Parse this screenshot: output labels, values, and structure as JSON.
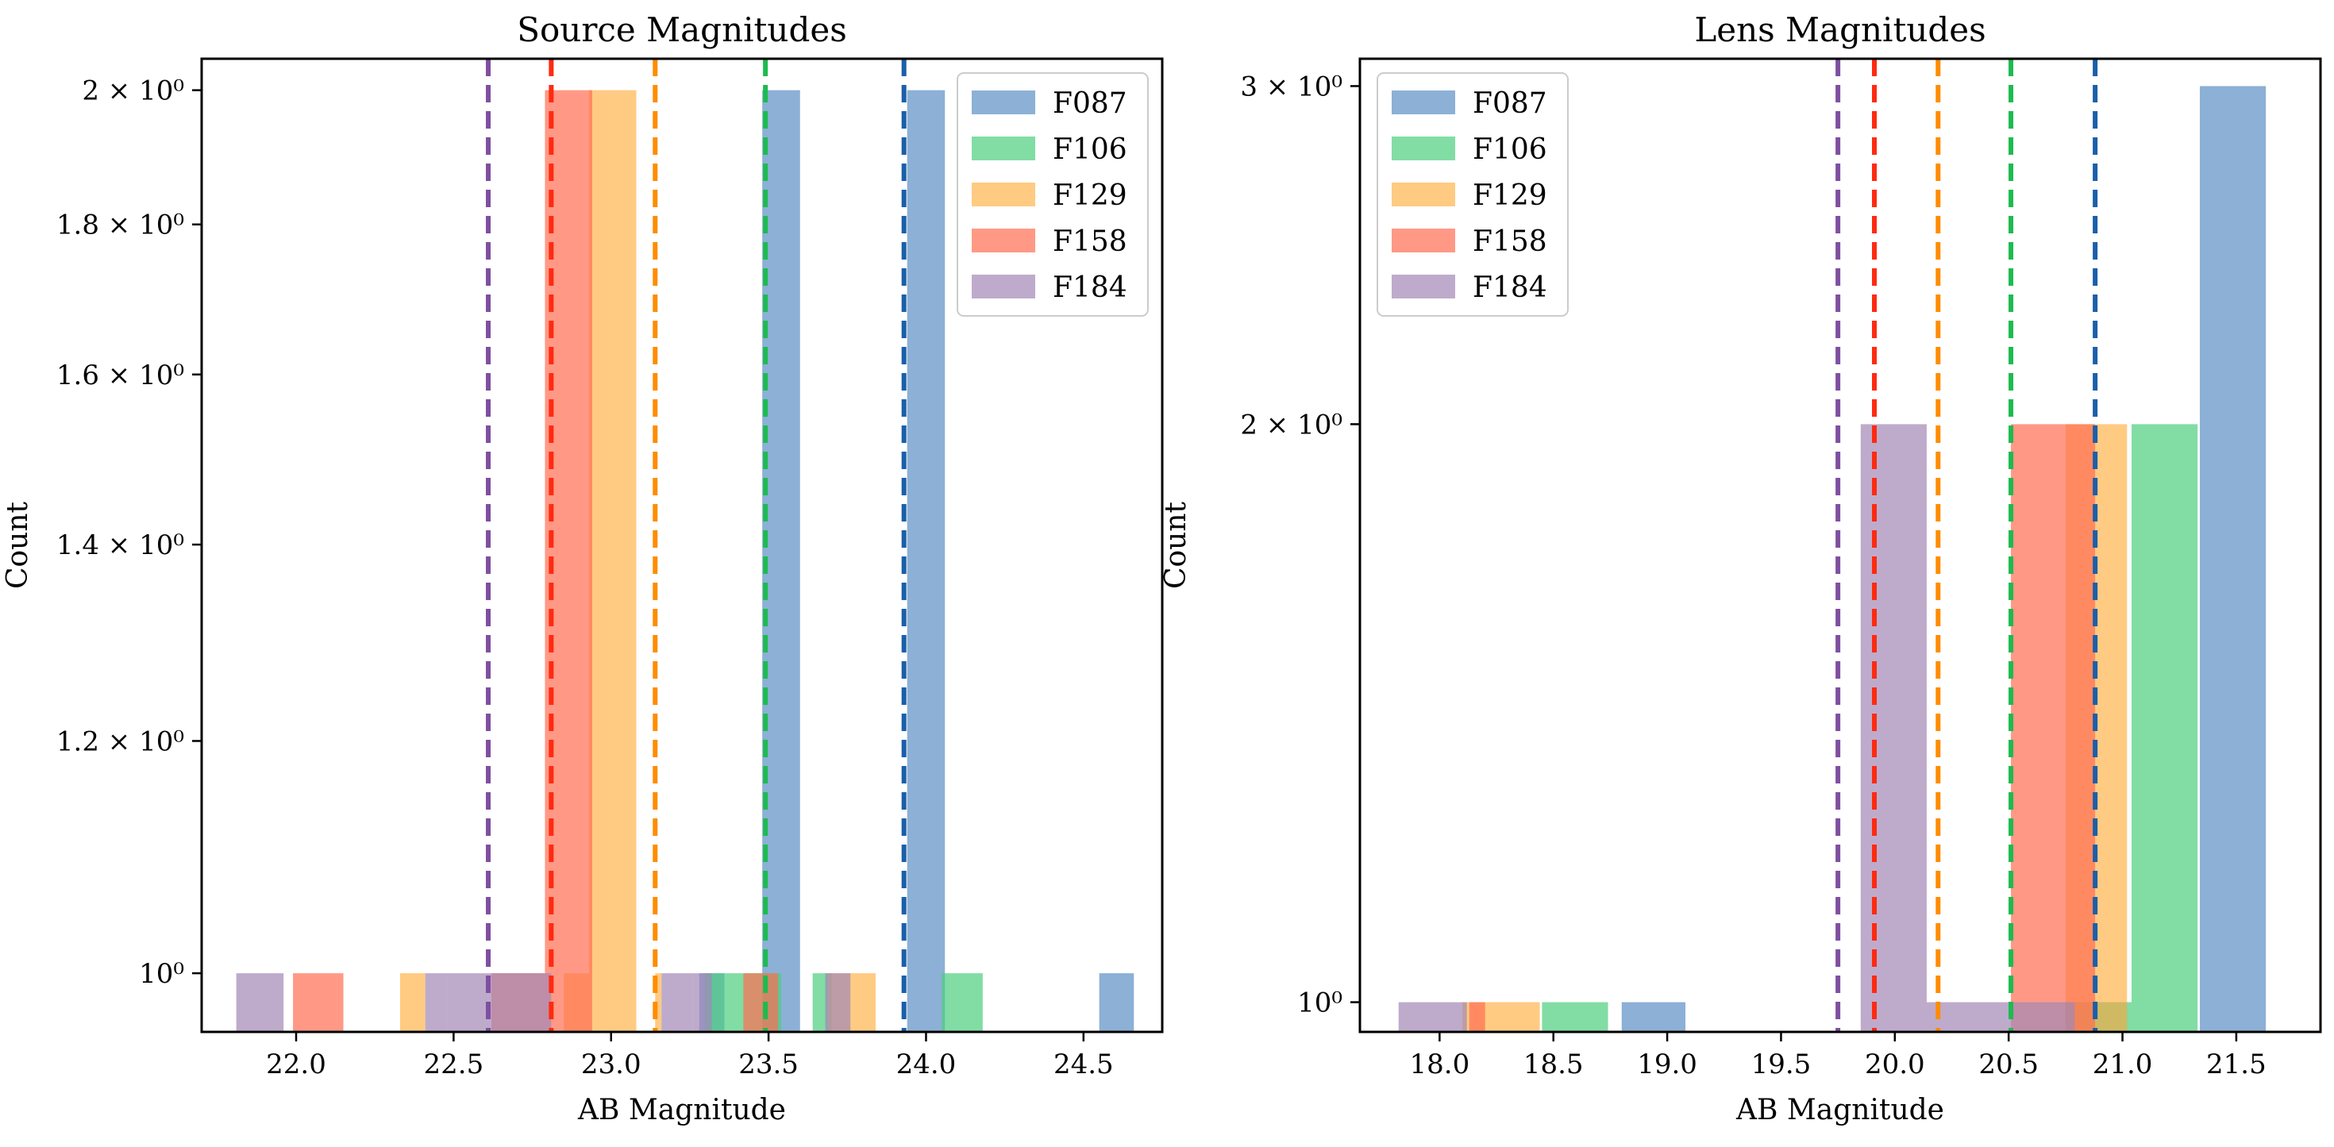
{
  "filters": [
    "F087",
    "F106",
    "F129",
    "F158",
    "F184"
  ],
  "colors": {
    "F087": "#5b8fc4",
    "F106": "#4ccf7d",
    "F129": "#ffb54d",
    "F158": "#ff6e52",
    "F184": "#a287b6"
  },
  "line_colors": {
    "F087": "#1a5fa8",
    "F106": "#1dbb4f",
    "F129": "#ff8c00",
    "F158": "#ff2a10",
    "F184": "#7f4fa0"
  },
  "chart_data": [
    {
      "type": "bar",
      "title": "Source Magnitudes",
      "xlabel": "AB Magnitude",
      "ylabel": "Count",
      "yscale": "log",
      "xlim": [
        21.7,
        24.75
      ],
      "ylim": [
        0.955,
        2.05
      ],
      "xticks": [
        "22.0",
        "22.5",
        "23.0",
        "23.5",
        "24.0",
        "24.5"
      ],
      "yticks": [
        {
          "value": 1.0,
          "label": "10⁰"
        },
        {
          "value": 1.2,
          "label": "1.2 × 10⁰"
        },
        {
          "value": 1.4,
          "label": "1.4 × 10⁰"
        },
        {
          "value": 1.6,
          "label": "1.6 × 10⁰"
        },
        {
          "value": 1.8,
          "label": "1.8 × 10⁰"
        },
        {
          "value": 2.0,
          "label": "2 × 10⁰"
        }
      ],
      "legend_position": "upper right",
      "series": [
        {
          "name": "F087",
          "bars": [
            [
              23.28,
              23.36,
              1
            ],
            [
              23.48,
              23.6,
              2
            ],
            [
              23.94,
              24.06,
              2
            ],
            [
              24.55,
              24.66,
              1
            ]
          ],
          "vline": 23.93
        },
        {
          "name": "F106",
          "bars": [
            [
              23.3,
              23.36,
              1
            ],
            [
              23.36,
              23.54,
              1
            ],
            [
              23.64,
              23.7,
              1
            ],
            [
              24.05,
              24.18,
              1
            ]
          ],
          "vline": 23.49
        },
        {
          "name": "F129",
          "bars": [
            [
              22.33,
              22.41,
              1
            ],
            [
              22.85,
              22.93,
              1
            ],
            [
              22.93,
              23.08,
              2
            ],
            [
              23.14,
              23.16,
              1
            ],
            [
              23.69,
              23.84,
              1
            ]
          ],
          "vline": 23.14
        },
        {
          "name": "F158",
          "bars": [
            [
              21.99,
              22.15,
              1
            ],
            [
              22.62,
              22.79,
              1
            ],
            [
              22.79,
              22.94,
              2
            ],
            [
              23.42,
              23.53,
              1
            ]
          ],
          "vline": 22.81
        },
        {
          "name": "F184",
          "bars": [
            [
              21.81,
              21.96,
              1
            ],
            [
              22.41,
              22.48,
              1
            ],
            [
              22.48,
              22.62,
              1
            ],
            [
              22.62,
              22.81,
              1
            ],
            [
              23.16,
              23.26,
              1
            ],
            [
              23.26,
              23.32,
              1
            ],
            [
              23.68,
              23.76,
              1
            ]
          ],
          "vline": 22.61
        }
      ]
    },
    {
      "type": "bar",
      "title": "Lens Magnitudes",
      "xlabel": "AB Magnitude",
      "ylabel": "Count",
      "yscale": "log",
      "xlim": [
        17.65,
        21.87
      ],
      "ylim": [
        0.965,
        3.1
      ],
      "xticks": [
        "18.0",
        "18.5",
        "19.0",
        "19.5",
        "20.0",
        "20.5",
        "21.0",
        "21.5"
      ],
      "yticks": [
        {
          "value": 1.0,
          "label": "10⁰"
        },
        {
          "value": 2.0,
          "label": "2 × 10⁰"
        },
        {
          "value": 3.0,
          "label": "3 × 10⁰"
        }
      ],
      "legend_position": "upper left",
      "series": [
        {
          "name": "F087",
          "bars": [
            [
              18.8,
              19.08,
              1
            ],
            [
              20.75,
              21.02,
              1
            ],
            [
              21.34,
              21.63,
              3
            ]
          ],
          "vline": 20.88
        },
        {
          "name": "F106",
          "bars": [
            [
              18.45,
              18.74,
              1
            ],
            [
              20.75,
              21.04,
              1
            ],
            [
              21.04,
              21.33,
              2
            ]
          ],
          "vline": 20.51
        },
        {
          "name": "F129",
          "bars": [
            [
              18.1,
              18.44,
              1
            ],
            [
              20.75,
              21.02,
              2
            ]
          ],
          "vline": 20.19
        },
        {
          "name": "F158",
          "bars": [
            [
              18.13,
              18.2,
              1
            ],
            [
              20.51,
              20.88,
              2
            ]
          ],
          "vline": 19.91
        },
        {
          "name": "F184",
          "bars": [
            [
              17.82,
              18.12,
              1
            ],
            [
              19.85,
              20.14,
              2
            ],
            [
              20.14,
              20.79,
              1
            ]
          ],
          "vline": 19.75
        }
      ]
    }
  ]
}
